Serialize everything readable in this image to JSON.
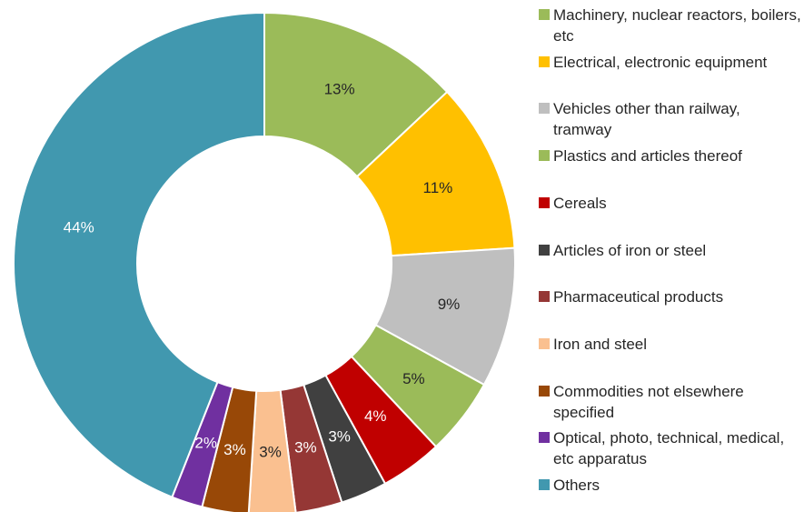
{
  "chart_data": {
    "type": "donut",
    "categories": [
      "Machinery, nuclear reactors, boilers, etc",
      "Electrical, electronic equipment",
      "Vehicles other than railway, tramway",
      "Plastics and articles thereof",
      "Cereals",
      "Articles of iron or steel",
      "Pharmaceutical products",
      "Iron and steel",
      "Commodities not elsewhere specified",
      "Optical, photo, technical, medical, etc apparatus",
      "Others"
    ],
    "values": [
      13,
      11,
      9,
      5,
      4,
      3,
      3,
      3,
      3,
      2,
      44
    ],
    "value_labels": [
      "13%",
      "11%",
      "9%",
      "5%",
      "4%",
      "3%",
      "3%",
      "3%",
      "3%",
      "2%",
      "44%"
    ],
    "colors": [
      "#9bbb59",
      "#ffc000",
      "#bfbfbf",
      "#9bbb59",
      "#c00000",
      "#404040",
      "#953735",
      "#fac090",
      "#984807",
      "#7030a0",
      "#4198af"
    ],
    "legend": "right"
  }
}
